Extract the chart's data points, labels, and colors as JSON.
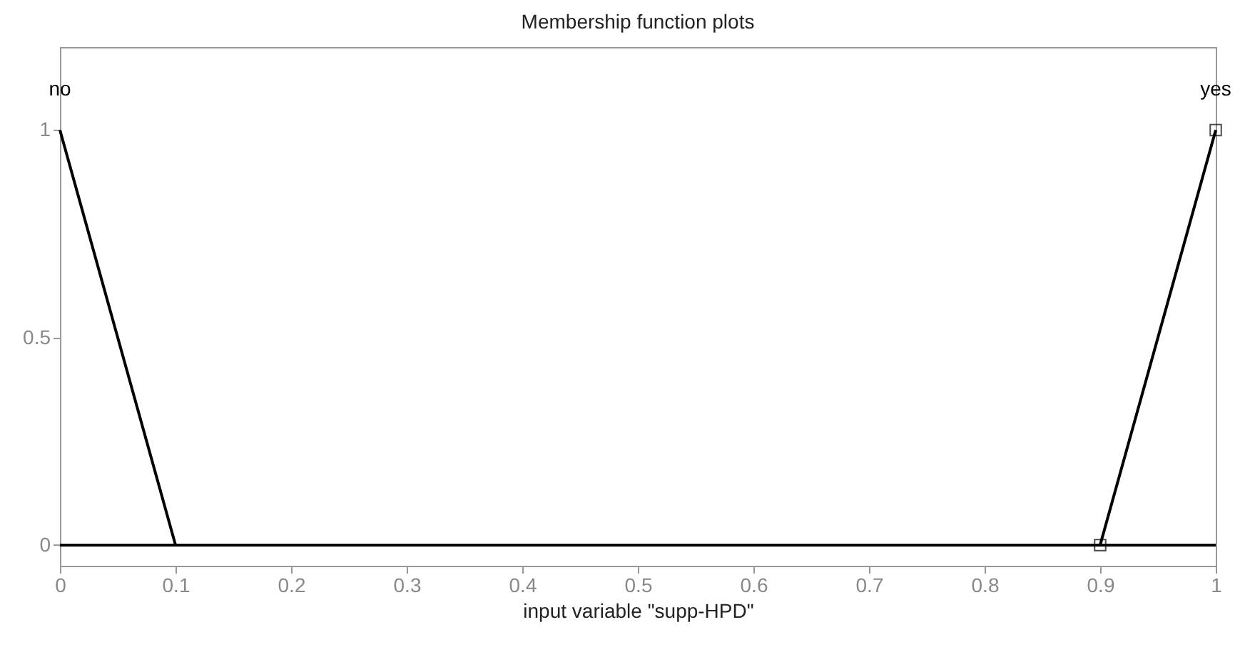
{
  "chart_data": {
    "type": "line",
    "title": "Membership function plots",
    "xlabel": "input variable \"supp-HPD\"",
    "xlim": [
      0,
      1
    ],
    "ylim": [
      -0.05,
      1.2
    ],
    "xticks": [
      0,
      0.1,
      0.2,
      0.3,
      0.4,
      0.5,
      0.6,
      0.7,
      0.8,
      0.9,
      1
    ],
    "yticks": [
      0,
      0.5,
      1
    ],
    "grid": false,
    "marker": "none",
    "line_style": "solid",
    "series": [
      {
        "name": "no",
        "color": "#000000",
        "x": [
          0,
          0.1,
          1
        ],
        "values": [
          1,
          0,
          0
        ]
      },
      {
        "name": "yes",
        "color": "#000000",
        "x": [
          0,
          0.9,
          1
        ],
        "values": [
          0,
          0,
          1
        ]
      },
      {
        "type": "scatter",
        "marker": "square",
        "color": "#000000",
        "x": [
          0.9,
          1
        ],
        "values": [
          0,
          1
        ]
      }
    ]
  }
}
